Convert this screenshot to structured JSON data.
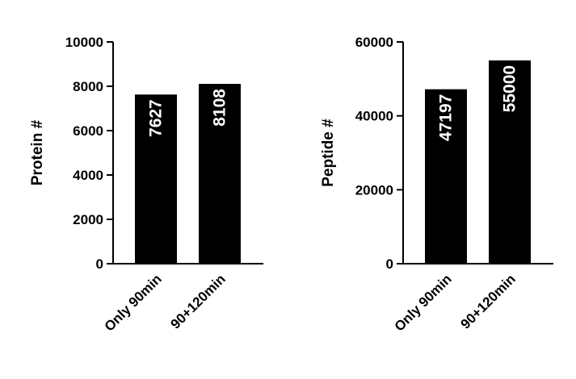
{
  "chart_data": [
    {
      "type": "bar",
      "categories": [
        "Only 90min",
        "90+120min"
      ],
      "values": [
        7627,
        8108
      ],
      "value_labels": [
        "7627",
        "8108"
      ],
      "title": "",
      "xlabel": "",
      "ylabel": "Protein #",
      "ylim": [
        0,
        10000
      ],
      "yticks": [
        0,
        2000,
        4000,
        6000,
        8000,
        10000
      ],
      "ytick_labels": [
        "0",
        "2000",
        "4000",
        "6000",
        "8000",
        "10000"
      ],
      "grid": false,
      "legend": "none",
      "bar_color": "#000000",
      "label_color": "#ffffff"
    },
    {
      "type": "bar",
      "categories": [
        "Only 90min",
        "90+120min"
      ],
      "values": [
        47197,
        55000
      ],
      "value_labels": [
        "47197",
        "55000"
      ],
      "title": "",
      "xlabel": "",
      "ylabel": "Peptide #",
      "ylim": [
        0,
        60000
      ],
      "yticks": [
        0,
        20000,
        40000,
        60000
      ],
      "ytick_labels": [
        "0",
        "20000",
        "40000",
        "60000"
      ],
      "grid": false,
      "legend": "none",
      "bar_color": "#000000",
      "label_color": "#ffffff"
    }
  ]
}
